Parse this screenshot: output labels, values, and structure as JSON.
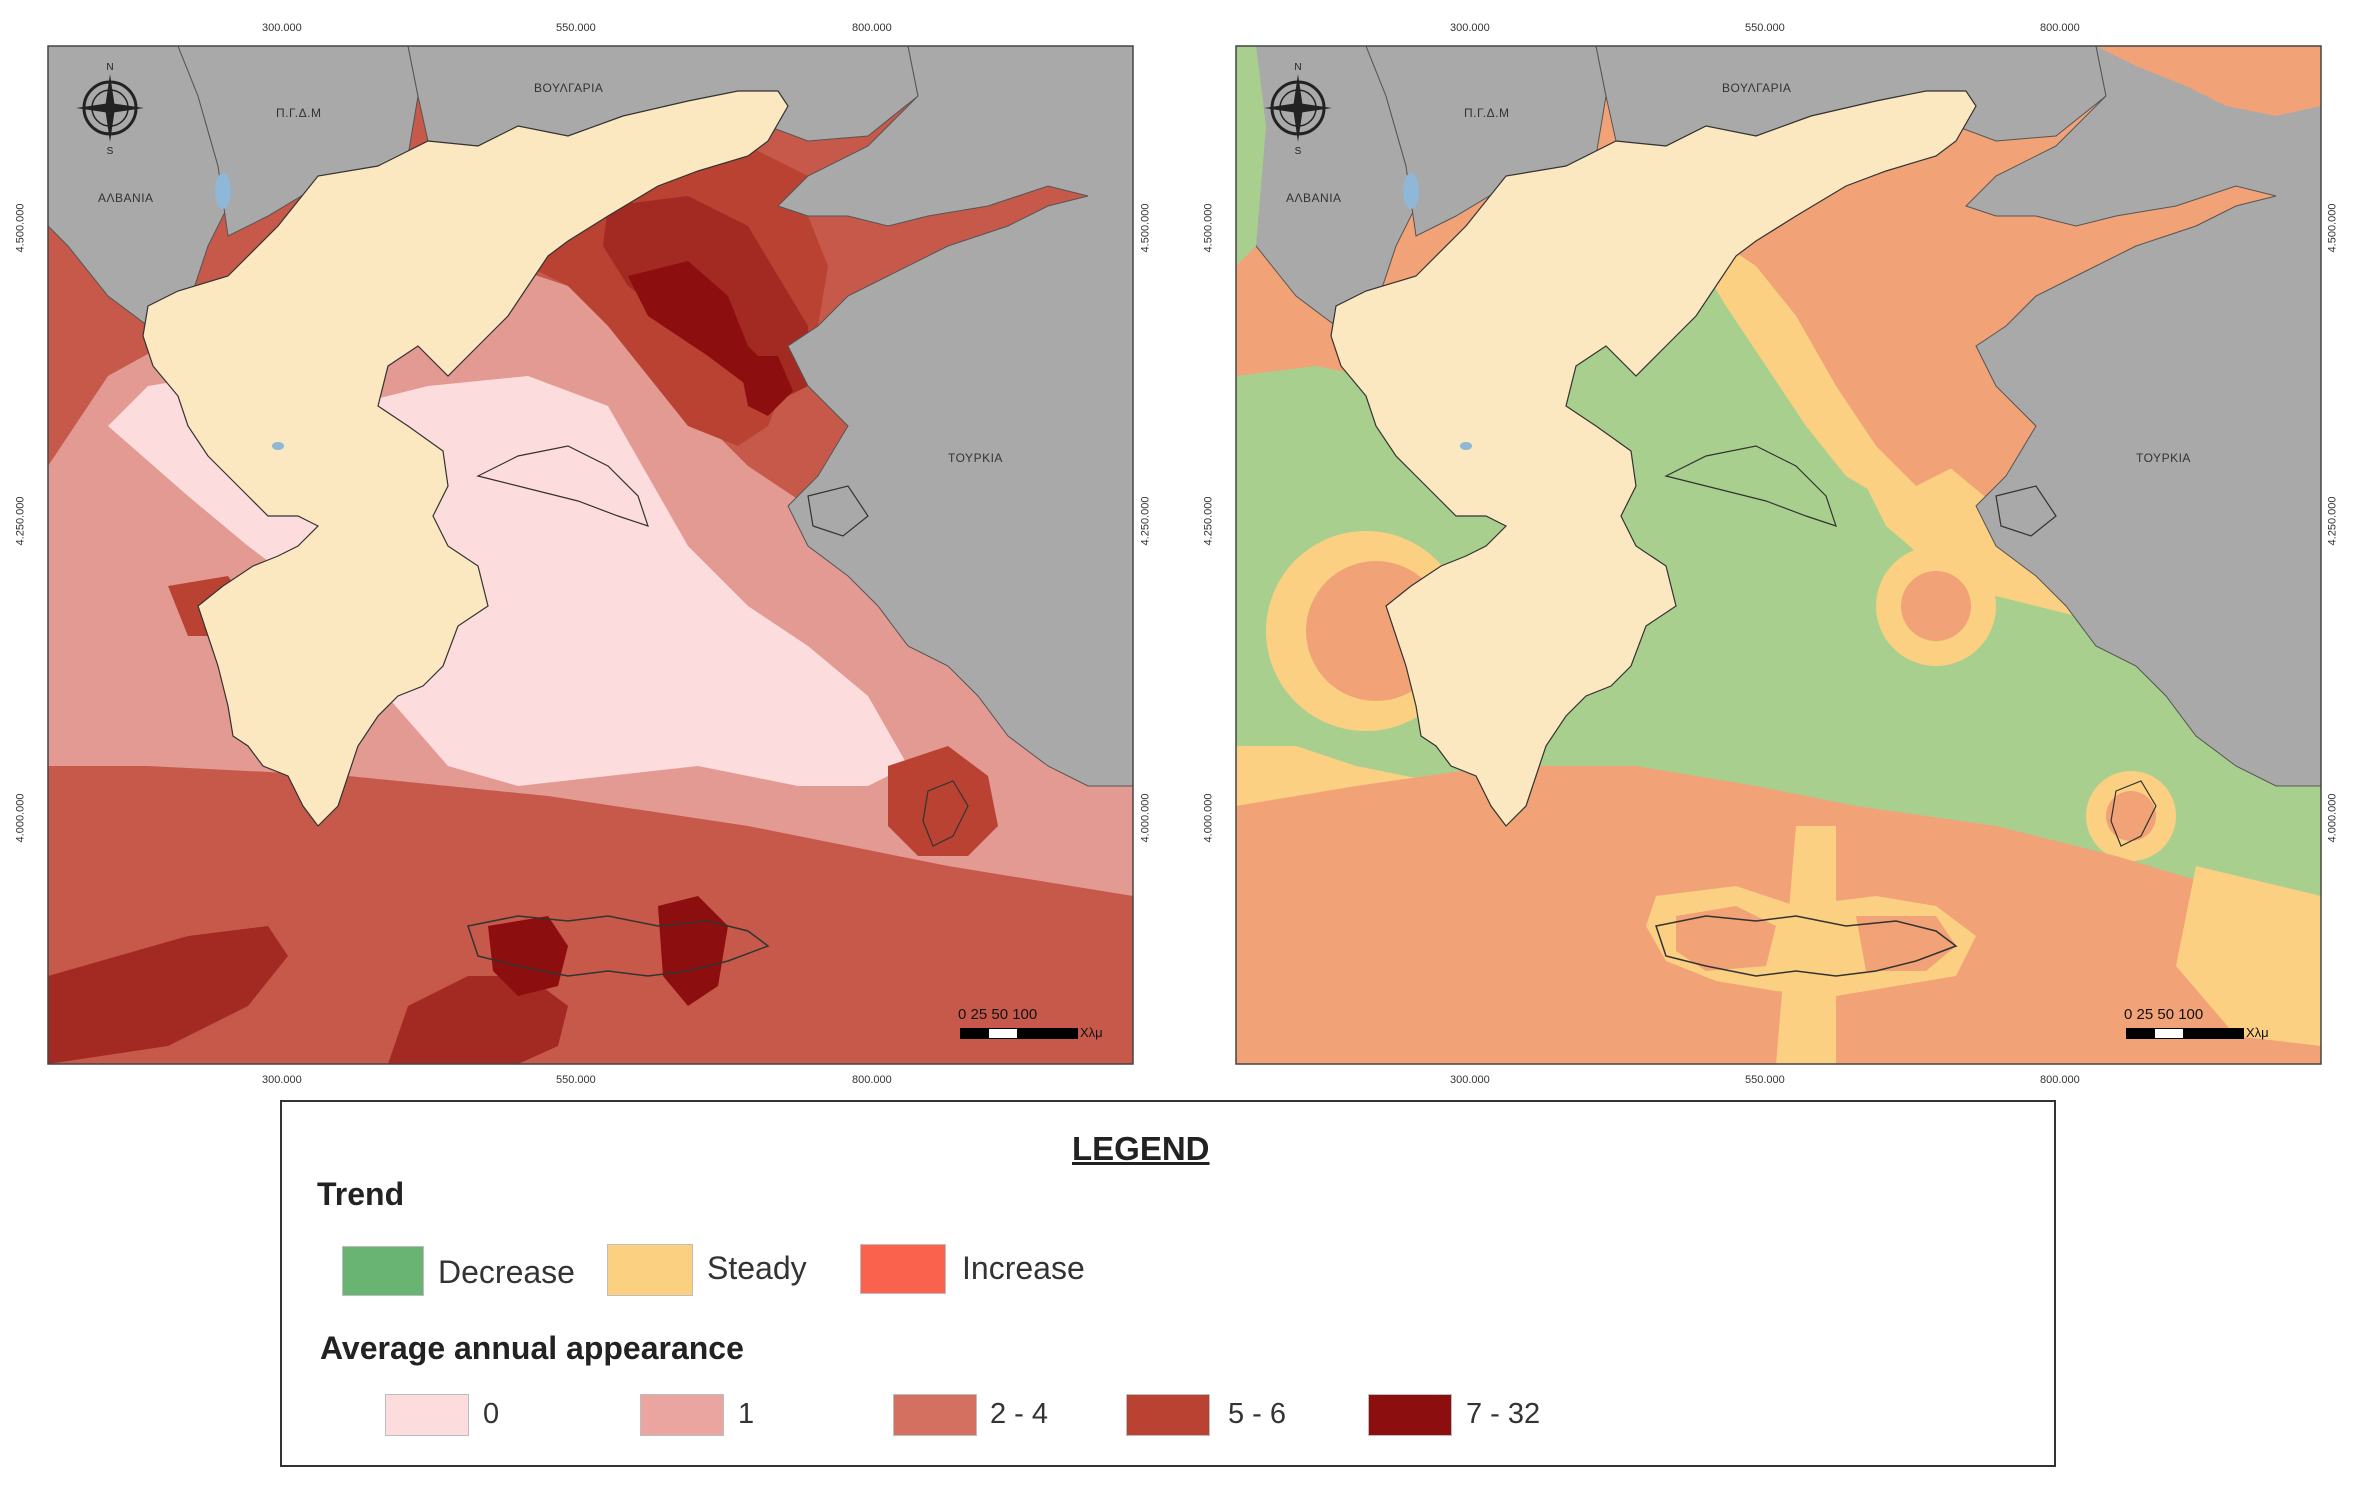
{
  "maps": {
    "left": {
      "x_ticks": [
        "300.000",
        "550.000",
        "800.000"
      ],
      "y_ticks": [
        "4.500.000",
        "4.250.000",
        "4.000.000"
      ],
      "countries": {
        "albania": "ΑΛΒΑΝΙΑ",
        "fyrom": "Π.Γ.Δ.Μ",
        "bulgaria": "ΒΟΥΛΓΑΡΙΑ",
        "turkey": "ΤΟΥΡΚΙΑ"
      },
      "scale": {
        "numbers": "0  25 50       100",
        "unit": "Χλμ"
      }
    },
    "right": {
      "x_ticks": [
        "300.000",
        "550.000",
        "800.000"
      ],
      "y_ticks": [
        "4.500.000",
        "4.250.000",
        "4.000.000"
      ],
      "countries": {
        "albania": "ΑΛΒΑΝΙΑ",
        "fyrom": "Π.Γ.Δ.Μ",
        "bulgaria": "ΒΟΥΛΓΑΡΙΑ",
        "turkey": "ΤΟΥΡΚΙΑ"
      },
      "scale": {
        "numbers": "0  25 50       100",
        "unit": "Χλμ"
      }
    },
    "colors": {
      "land": "#fbe7c0",
      "neighbor": "#a9a9a9",
      "appearance_0": "#fcdcdc",
      "appearance_1": "#eba5a0",
      "appearance_2_4": "#d4705f",
      "appearance_5_6": "#b94233",
      "appearance_7_32": "#8c0e0e",
      "trend_decrease": "#a9cf8e",
      "trend_steady": "#fbd083",
      "trend_increase": "#f1a277"
    }
  },
  "legend": {
    "title": "LEGEND",
    "trend": {
      "label": "Trend",
      "items": [
        {
          "label": "Decrease",
          "color": "#6ab473"
        },
        {
          "label": "Steady",
          "color": "#fbd080"
        },
        {
          "label": "Increase",
          "color": "#fa624e"
        }
      ]
    },
    "appearance": {
      "label": "Average annual appearance",
      "items": [
        {
          "label": "0",
          "color": "#fcdcdc"
        },
        {
          "label": "1",
          "color": "#eba5a0"
        },
        {
          "label": "2 - 4",
          "color": "#d4705f"
        },
        {
          "label": "5 - 6",
          "color": "#b94233"
        },
        {
          "label": "7 - 32",
          "color": "#8c0e0e"
        }
      ]
    }
  }
}
